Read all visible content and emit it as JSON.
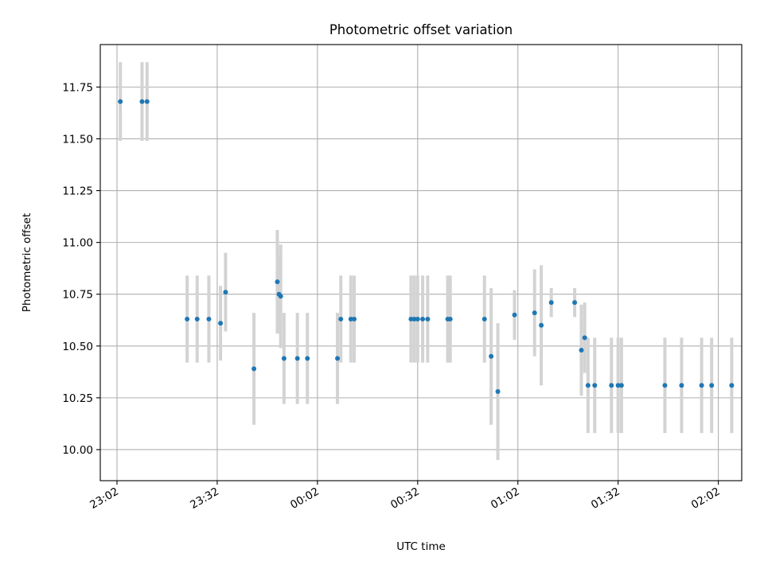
{
  "chart_data": {
    "type": "scatter",
    "title": "Photometric offset variation",
    "xlabel": "UTC time",
    "ylabel": "Photometric offset",
    "x_unit": "UTC time of day",
    "xlim": [
      "22:57",
      "02:09"
    ],
    "ylim": [
      9.85,
      11.955
    ],
    "x_ticks": [
      "23:02",
      "23:32",
      "00:02",
      "00:32",
      "01:02",
      "01:32",
      "02:02"
    ],
    "y_ticks": [
      "10.00",
      "10.25",
      "10.50",
      "10.75",
      "11.00",
      "11.25",
      "11.50",
      "11.75"
    ],
    "grid": true,
    "legend": "none",
    "colors": {
      "point": "#1f77b4",
      "errorbar": "#d3d3d3",
      "grid": "#b0b0b0"
    },
    "points": [
      {
        "x": "23:03",
        "y": 11.68,
        "err": 0.19
      },
      {
        "x": "23:09:30",
        "y": 11.68,
        "err": 0.19
      },
      {
        "x": "23:11",
        "y": 11.68,
        "err": 0.19
      },
      {
        "x": "23:23",
        "y": 10.63,
        "err": 0.21
      },
      {
        "x": "23:26",
        "y": 10.63,
        "err": 0.21
      },
      {
        "x": "23:29:30",
        "y": 10.63,
        "err": 0.21
      },
      {
        "x": "23:33",
        "y": 10.61,
        "err": 0.18
      },
      {
        "x": "23:34:30",
        "y": 10.76,
        "err": 0.19
      },
      {
        "x": "23:43",
        "y": 10.39,
        "err": 0.27
      },
      {
        "x": "23:50",
        "y": 10.81,
        "err": 0.25
      },
      {
        "x": "23:50:30",
        "y": 10.75,
        "err": 0.19
      },
      {
        "x": "23:51",
        "y": 10.74,
        "err": 0.25
      },
      {
        "x": "23:52",
        "y": 10.44,
        "err": 0.22
      },
      {
        "x": "23:56",
        "y": 10.44,
        "err": 0.22
      },
      {
        "x": "23:59",
        "y": 10.44,
        "err": 0.22
      },
      {
        "x": "00:08",
        "y": 10.44,
        "err": 0.22
      },
      {
        "x": "00:09",
        "y": 10.63,
        "err": 0.21
      },
      {
        "x": "00:12",
        "y": 10.63,
        "err": 0.21
      },
      {
        "x": "00:13",
        "y": 10.63,
        "err": 0.21
      },
      {
        "x": "00:30",
        "y": 10.63,
        "err": 0.21
      },
      {
        "x": "00:31",
        "y": 10.63,
        "err": 0.21
      },
      {
        "x": "00:32",
        "y": 10.63,
        "err": 0.21
      },
      {
        "x": "00:33:30",
        "y": 10.63,
        "err": 0.21
      },
      {
        "x": "00:35",
        "y": 10.63,
        "err": 0.21
      },
      {
        "x": "00:41",
        "y": 10.63,
        "err": 0.21
      },
      {
        "x": "00:41:45",
        "y": 10.63,
        "err": 0.21
      },
      {
        "x": "00:52",
        "y": 10.63,
        "err": 0.21
      },
      {
        "x": "00:54",
        "y": 10.45,
        "err": 0.33
      },
      {
        "x": "00:56",
        "y": 10.28,
        "err": 0.33
      },
      {
        "x": "01:01",
        "y": 10.65,
        "err": 0.12
      },
      {
        "x": "01:07",
        "y": 10.66,
        "err": 0.21
      },
      {
        "x": "01:09",
        "y": 10.6,
        "err": 0.29
      },
      {
        "x": "01:12",
        "y": 10.71,
        "err": 0.07
      },
      {
        "x": "01:19",
        "y": 10.71,
        "err": 0.07
      },
      {
        "x": "01:21",
        "y": 10.48,
        "err": 0.22
      },
      {
        "x": "01:22",
        "y": 10.54,
        "err": 0.17
      },
      {
        "x": "01:23",
        "y": 10.31,
        "err": 0.23
      },
      {
        "x": "01:25",
        "y": 10.31,
        "err": 0.23
      },
      {
        "x": "01:30",
        "y": 10.31,
        "err": 0.23
      },
      {
        "x": "01:32",
        "y": 10.31,
        "err": 0.23
      },
      {
        "x": "01:33",
        "y": 10.31,
        "err": 0.23
      },
      {
        "x": "01:46",
        "y": 10.31,
        "err": 0.23
      },
      {
        "x": "01:51",
        "y": 10.31,
        "err": 0.23
      },
      {
        "x": "01:57",
        "y": 10.31,
        "err": 0.23
      },
      {
        "x": "02:00",
        "y": 10.31,
        "err": 0.23
      },
      {
        "x": "02:06",
        "y": 10.31,
        "err": 0.23
      }
    ]
  }
}
